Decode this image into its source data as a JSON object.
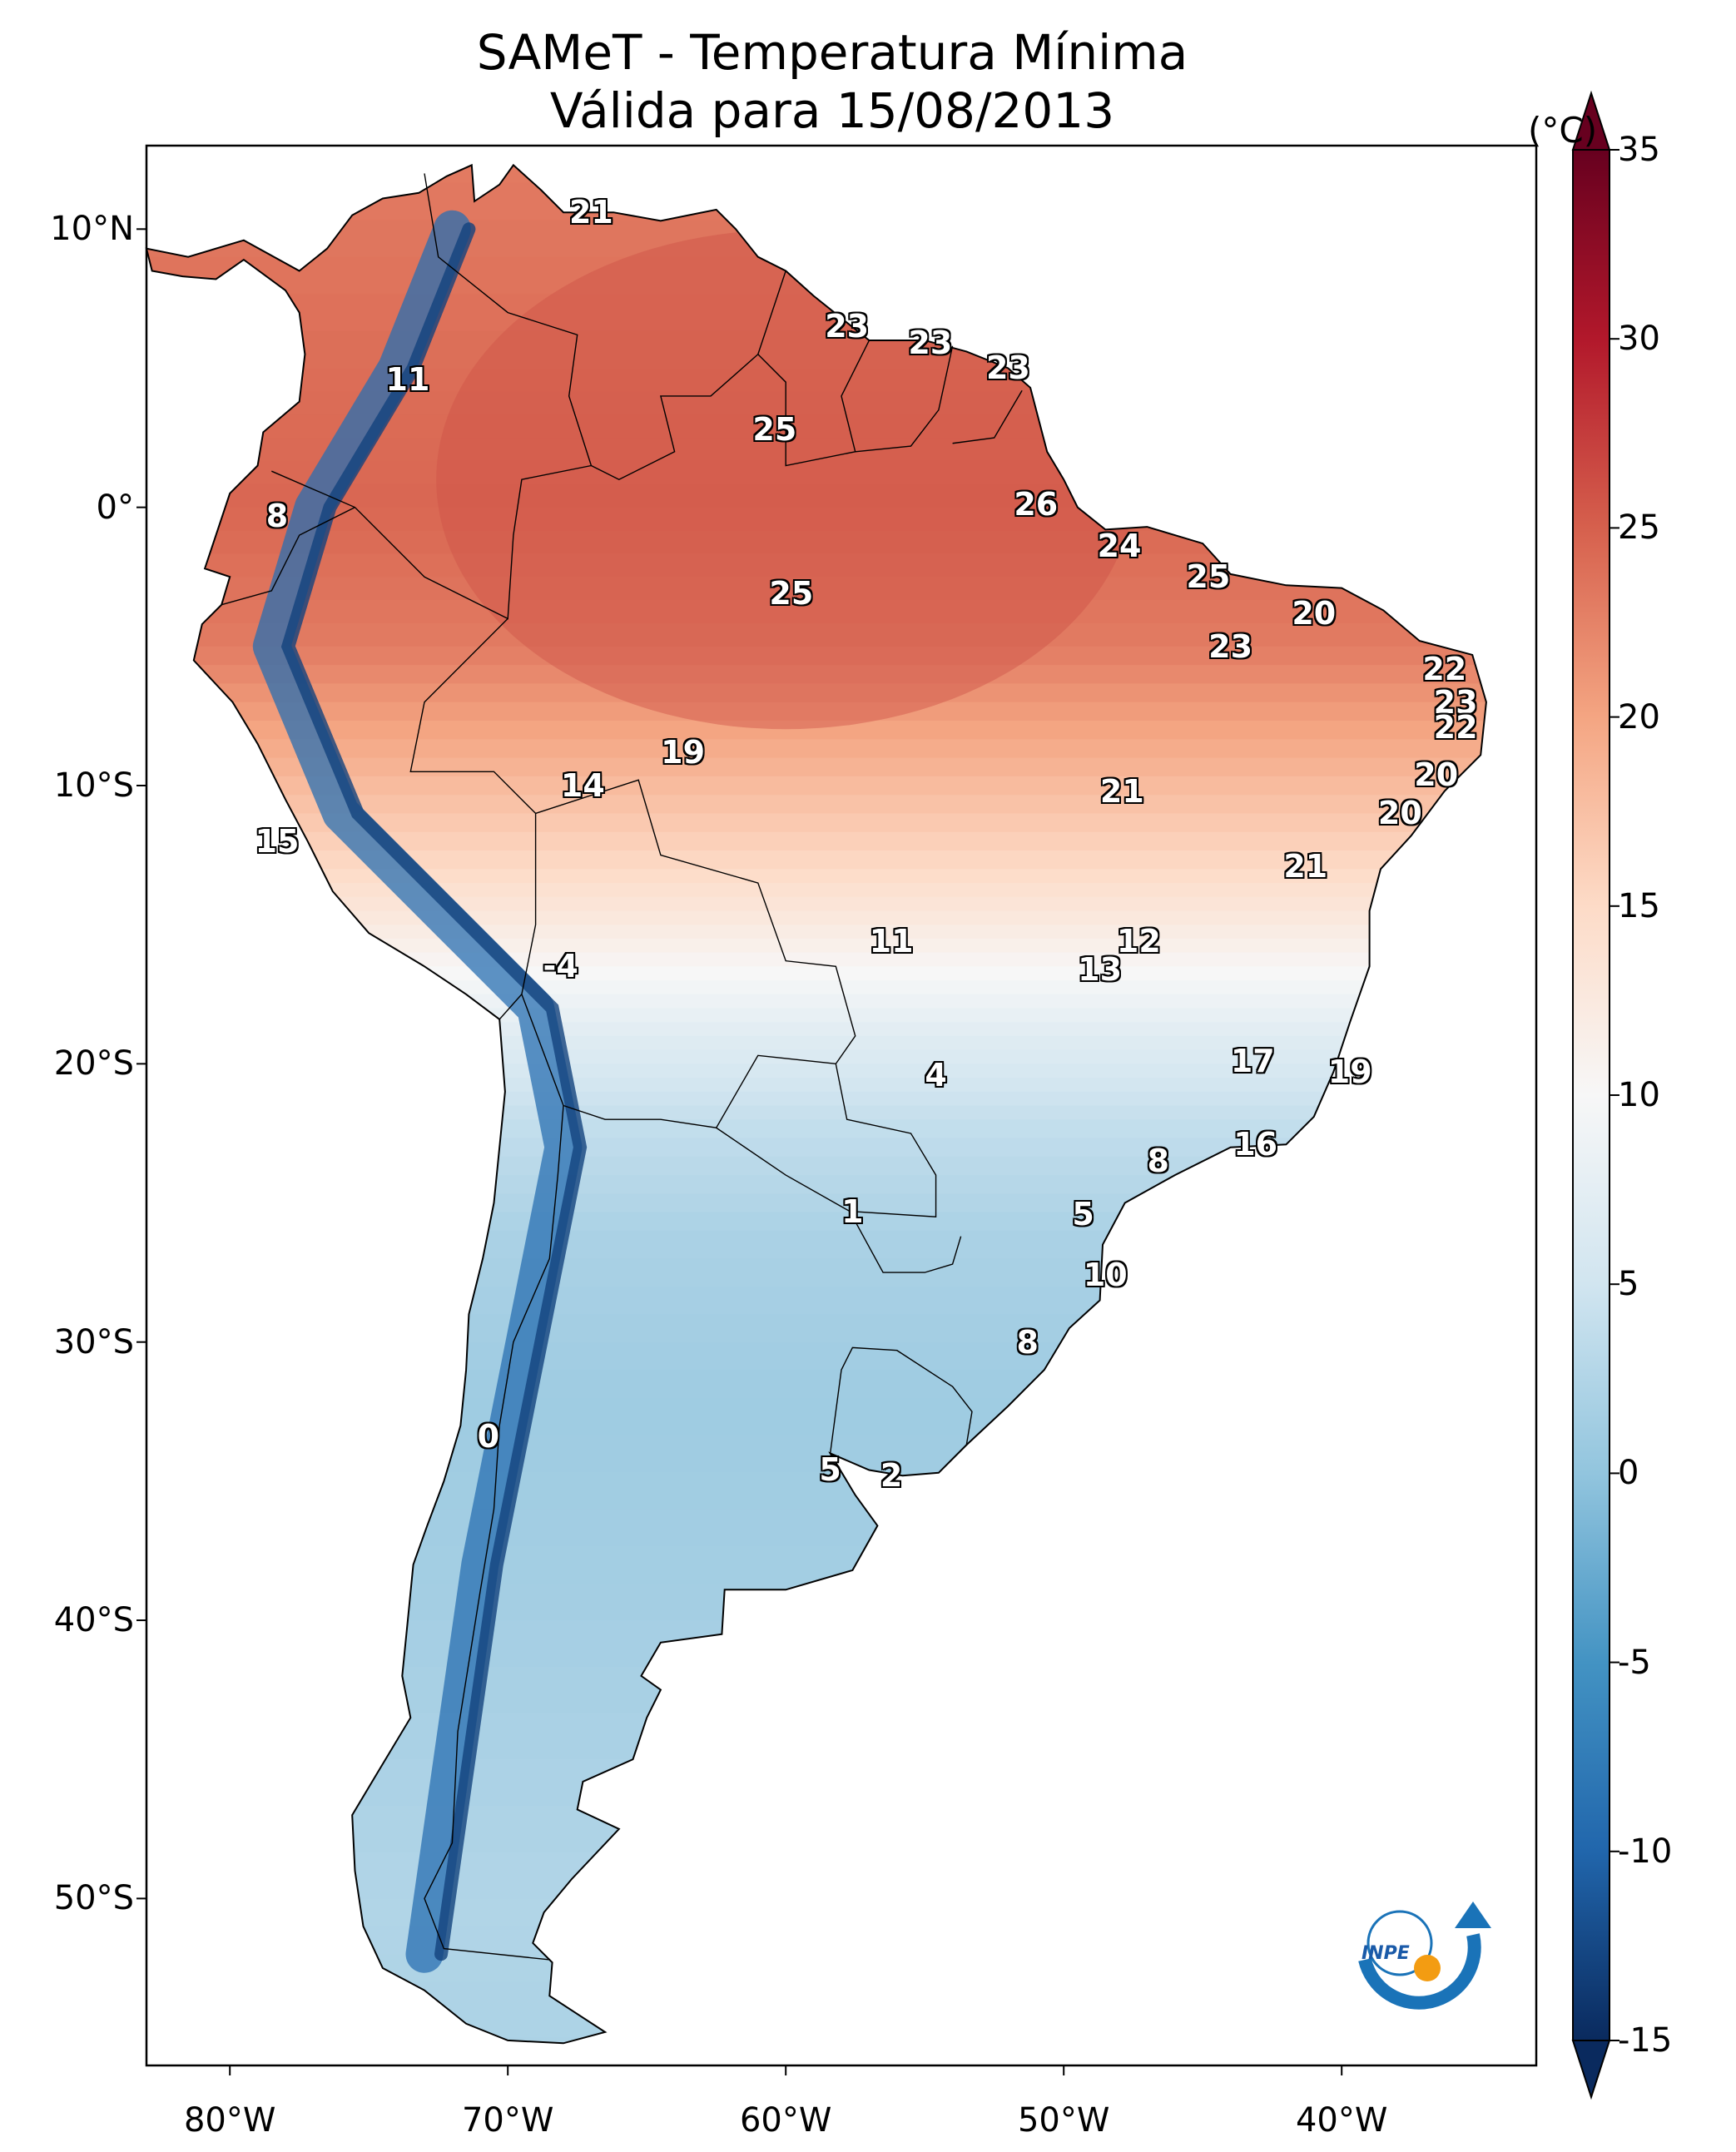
{
  "title": {
    "line1": "SAMeT - Temperatura Mínima",
    "line2": "Válida para 15/08/2013"
  },
  "axes": {
    "lat_ticks": [
      {
        "lat": 10,
        "label": "10°N"
      },
      {
        "lat": 0,
        "label": "0°"
      },
      {
        "lat": -10,
        "label": "10°S"
      },
      {
        "lat": -20,
        "label": "20°S"
      },
      {
        "lat": -30,
        "label": "30°S"
      },
      {
        "lat": -40,
        "label": "40°S"
      },
      {
        "lat": -50,
        "label": "50°S"
      }
    ],
    "lon_ticks": [
      {
        "lon": -80,
        "label": "80°W"
      },
      {
        "lon": -70,
        "label": "70°W"
      },
      {
        "lon": -60,
        "label": "60°W"
      },
      {
        "lon": -50,
        "label": "50°W"
      },
      {
        "lon": -40,
        "label": "40°W"
      }
    ],
    "lon_range": [
      -83,
      -33
    ],
    "lat_range": [
      -56,
      13
    ]
  },
  "colorbar": {
    "unit": "(°C)",
    "min": -15,
    "max": 35,
    "ticks": [
      {
        "value": 35,
        "label": "35"
      },
      {
        "value": 30,
        "label": "30"
      },
      {
        "value": 25,
        "label": "25"
      },
      {
        "value": 20,
        "label": "20"
      },
      {
        "value": 15,
        "label": "15"
      },
      {
        "value": 10,
        "label": "10"
      },
      {
        "value": 5,
        "label": "5"
      },
      {
        "value": 0,
        "label": "0"
      },
      {
        "value": -5,
        "label": "-5"
      },
      {
        "value": -10,
        "label": "-10"
      },
      {
        "value": -15,
        "label": "-15"
      }
    ],
    "colors": [
      "#0a2a5e",
      "#2166ac",
      "#4393c3",
      "#92c5de",
      "#d1e5f0",
      "#f7f7f7",
      "#fddbc7",
      "#f4a582",
      "#d6604d",
      "#b2182b",
      "#67001f"
    ]
  },
  "station_labels": [
    {
      "lon": -67.0,
      "lat": 10.6,
      "text": "21"
    },
    {
      "lon": -57.8,
      "lat": 6.5,
      "text": "23"
    },
    {
      "lon": -54.8,
      "lat": 5.9,
      "text": "23"
    },
    {
      "lon": -52.0,
      "lat": 5.0,
      "text": "23"
    },
    {
      "lon": -73.6,
      "lat": 4.6,
      "text": "11"
    },
    {
      "lon": -60.4,
      "lat": 2.8,
      "text": "25"
    },
    {
      "lon": -51.0,
      "lat": 0.1,
      "text": "26"
    },
    {
      "lon": -78.3,
      "lat": -0.3,
      "text": "8"
    },
    {
      "lon": -48.0,
      "lat": -1.4,
      "text": "24"
    },
    {
      "lon": -44.8,
      "lat": -2.5,
      "text": "25"
    },
    {
      "lon": -59.8,
      "lat": -3.1,
      "text": "25"
    },
    {
      "lon": -41.0,
      "lat": -3.8,
      "text": "20"
    },
    {
      "lon": -44.0,
      "lat": -5.0,
      "text": "23"
    },
    {
      "lon": -36.3,
      "lat": -5.8,
      "text": "22"
    },
    {
      "lon": -35.9,
      "lat": -7.0,
      "text": "23"
    },
    {
      "lon": -35.9,
      "lat": -7.9,
      "text": "22"
    },
    {
      "lon": -63.7,
      "lat": -8.8,
      "text": "19"
    },
    {
      "lon": -36.6,
      "lat": -9.6,
      "text": "20"
    },
    {
      "lon": -67.3,
      "lat": -10.0,
      "text": "14"
    },
    {
      "lon": -47.9,
      "lat": -10.2,
      "text": "21"
    },
    {
      "lon": -37.9,
      "lat": -11.0,
      "text": "20"
    },
    {
      "lon": -78.3,
      "lat": -12.0,
      "text": "15"
    },
    {
      "lon": -41.3,
      "lat": -12.9,
      "text": "21"
    },
    {
      "lon": -56.2,
      "lat": -15.6,
      "text": "11"
    },
    {
      "lon": -47.3,
      "lat": -15.6,
      "text": "12"
    },
    {
      "lon": -48.7,
      "lat": -16.6,
      "text": "13"
    },
    {
      "lon": -68.1,
      "lat": -16.5,
      "text": "-4"
    },
    {
      "lon": -43.2,
      "lat": -19.9,
      "text": "17"
    },
    {
      "lon": -39.7,
      "lat": -20.3,
      "text": "19"
    },
    {
      "lon": -54.6,
      "lat": -20.4,
      "text": "4"
    },
    {
      "lon": -43.1,
      "lat": -22.9,
      "text": "16"
    },
    {
      "lon": -46.6,
      "lat": -23.5,
      "text": "8"
    },
    {
      "lon": -57.6,
      "lat": -25.3,
      "text": "1"
    },
    {
      "lon": -49.3,
      "lat": -25.4,
      "text": "5"
    },
    {
      "lon": -48.5,
      "lat": -27.6,
      "text": "10"
    },
    {
      "lon": -51.3,
      "lat": -30.0,
      "text": "8"
    },
    {
      "lon": -70.7,
      "lat": -33.4,
      "text": "0"
    },
    {
      "lon": -58.4,
      "lat": -34.6,
      "text": "5"
    },
    {
      "lon": -56.2,
      "lat": -34.8,
      "text": "2"
    }
  ],
  "logo": {
    "name": "inpe-logo",
    "text": "INPE"
  }
}
